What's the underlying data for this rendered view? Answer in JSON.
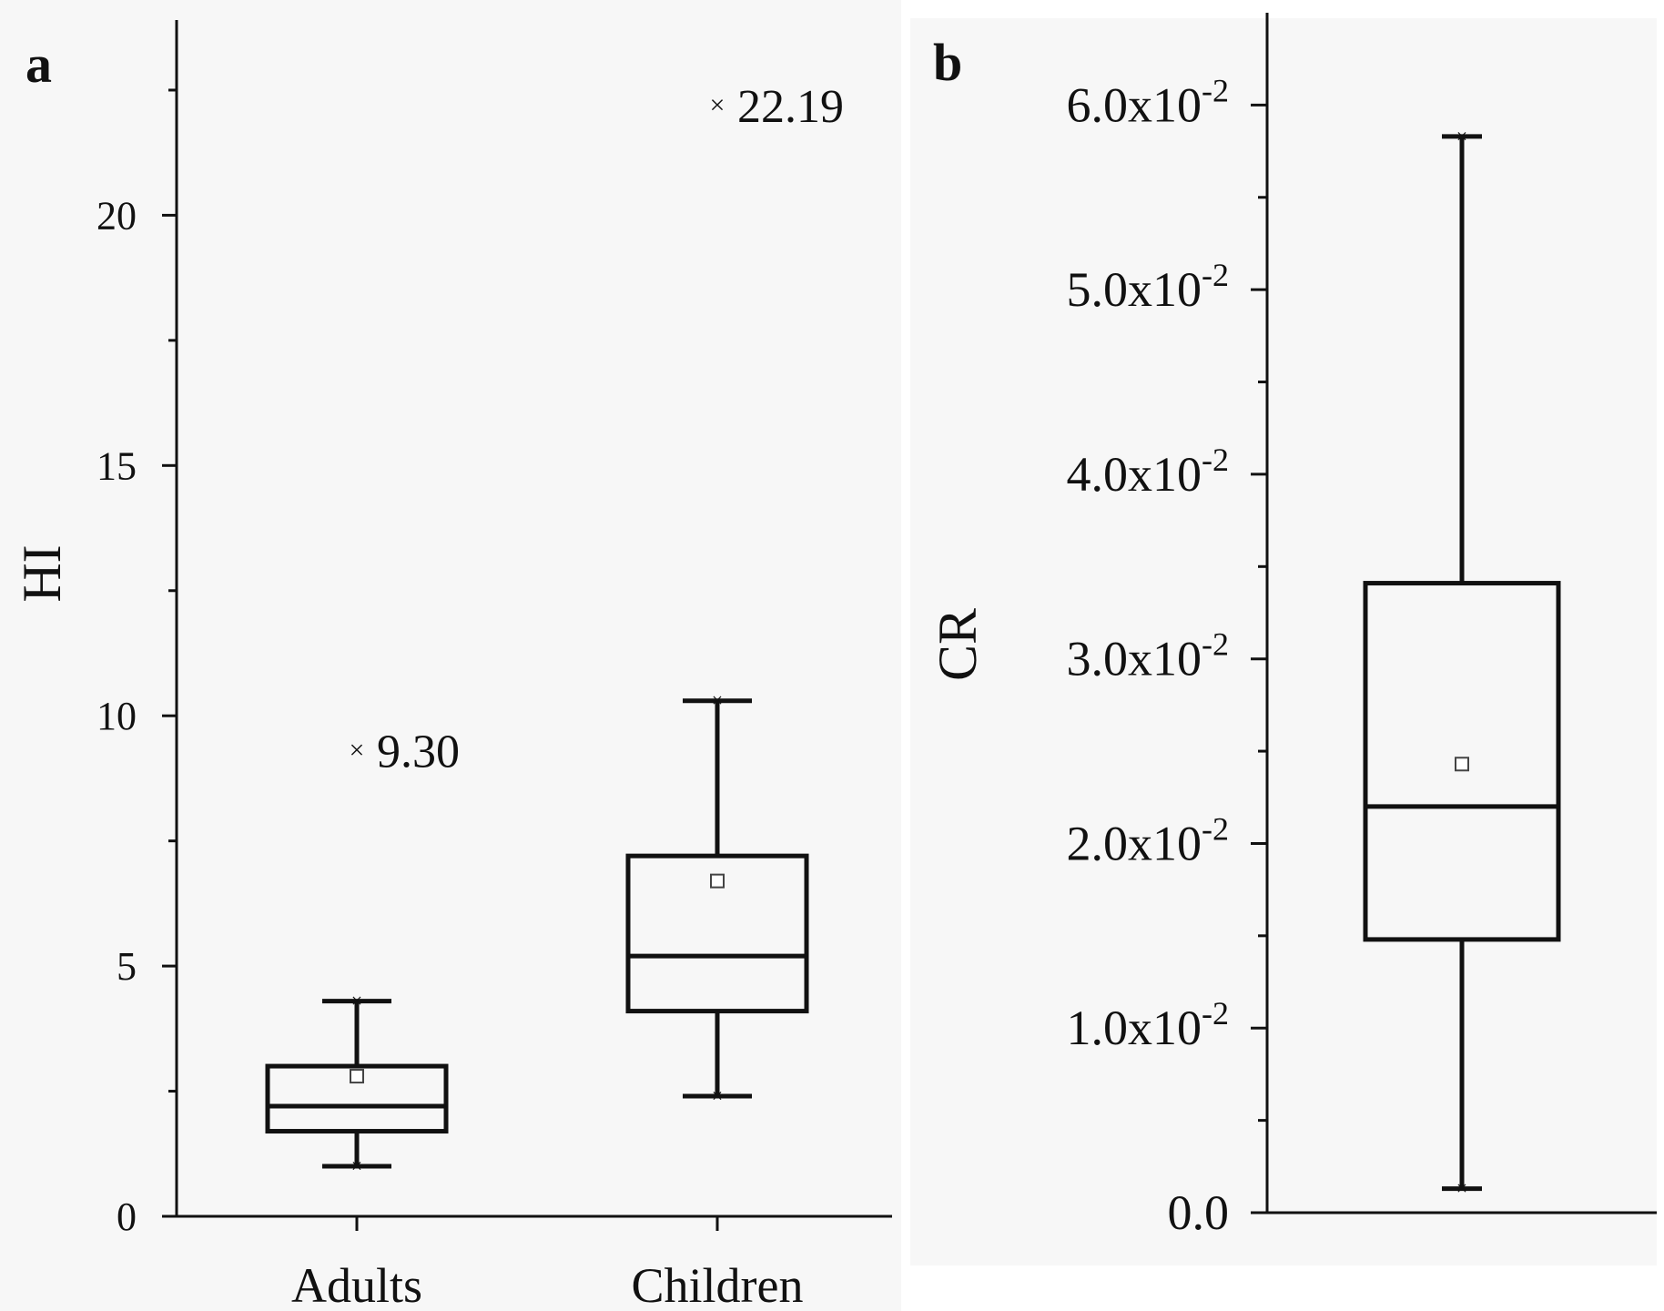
{
  "chart_data": [
    {
      "panel": "a",
      "type": "box",
      "ylabel": "HI",
      "ylim": [
        0,
        23.9
      ],
      "yticks": [
        "0",
        "5",
        "10",
        "15",
        "20"
      ],
      "categories": [
        "Adults",
        "Children"
      ],
      "boxes": [
        {
          "category": "Adults",
          "whisker_low": 1.0,
          "q1": 1.7,
          "median": 2.2,
          "q3": 3.0,
          "whisker_high": 4.3,
          "mean": 2.8,
          "outlier": 9.3,
          "outlier_label": "9.30"
        },
        {
          "category": "Children",
          "whisker_low": 2.4,
          "q1": 4.1,
          "median": 5.2,
          "q3": 7.2,
          "whisker_high": 10.3,
          "mean": 6.7,
          "outlier": 22.19,
          "outlier_label": "22.19"
        }
      ]
    },
    {
      "panel": "b",
      "type": "box",
      "ylabel": "CR",
      "ylim": [
        0,
        0.065
      ],
      "yticks": [
        {
          "base": "0.0",
          "exp": ""
        },
        {
          "base": "1.0x10",
          "exp": "-2"
        },
        {
          "base": "2.0x10",
          "exp": "-2"
        },
        {
          "base": "3.0x10",
          "exp": "-2"
        },
        {
          "base": "4.0x10",
          "exp": "-2"
        },
        {
          "base": "5.0x10",
          "exp": "-2"
        },
        {
          "base": "6.0x10",
          "exp": "-2"
        }
      ],
      "boxes": [
        {
          "whisker_low": 0.0013,
          "q1": 0.0148,
          "median": 0.022,
          "q3": 0.0341,
          "whisker_high": 0.0583,
          "mean": 0.0243
        }
      ]
    }
  ]
}
